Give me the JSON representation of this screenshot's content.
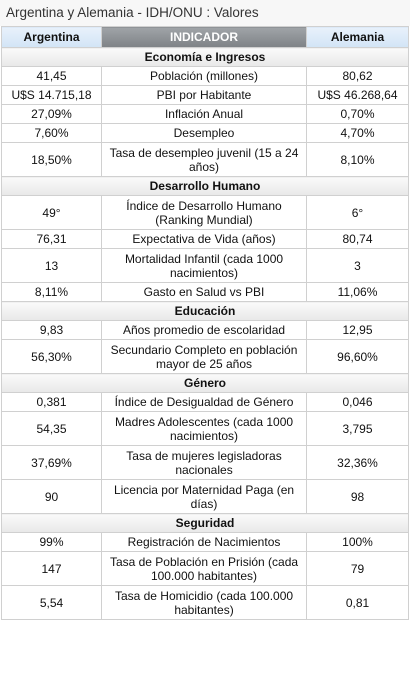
{
  "title": "Argentina y Alemania - IDH/ONU : Valores",
  "headers": {
    "left": "Argentina",
    "middle": "INDICADOR",
    "right": "Alemania"
  },
  "rows": [
    {
      "type": "section",
      "label": "Economía e Ingresos"
    },
    {
      "a": "41,45",
      "label": "Población (millones)",
      "b": "80,62"
    },
    {
      "a": "U$S 14.715,18",
      "label": "PBI por Habitante",
      "b": "U$S 46.268,64"
    },
    {
      "a": "27,09%",
      "label": "Inflación Anual",
      "b": "0,70%"
    },
    {
      "a": "7,60%",
      "label": "Desempleo",
      "b": "4,70%"
    },
    {
      "a": "18,50%",
      "label": "Tasa de desempleo juvenil (15 a 24 años)",
      "b": "8,10%",
      "tall": true
    },
    {
      "type": "section",
      "label": "Desarrollo Humano"
    },
    {
      "a": "49°",
      "label": "Índice de Desarrollo Humano (Ranking Mundial)",
      "b": "6°",
      "tall": true
    },
    {
      "a": "76,31",
      "label": "Expectativa de Vida (años)",
      "b": "80,74"
    },
    {
      "a": "13",
      "label": "Mortalidad Infantil (cada 1000 nacimientos)",
      "b": "3",
      "tall": true
    },
    {
      "a": "8,11%",
      "label": "Gasto en Salud vs PBI",
      "b": "11,06%"
    },
    {
      "type": "section",
      "label": "Educación"
    },
    {
      "a": "9,83",
      "label": "Años promedio de escolaridad",
      "b": "12,95"
    },
    {
      "a": "56,30%",
      "label": "Secundario Completo en población mayor de 25 años",
      "b": "96,60%",
      "tall": true
    },
    {
      "type": "section",
      "label": "Género"
    },
    {
      "a": "0,381",
      "label": "Índice de Desigualdad de Género",
      "b": "0,046"
    },
    {
      "a": "54,35",
      "label": "Madres Adolescentes (cada 1000 nacimientos)",
      "b": "3,795",
      "tall": true
    },
    {
      "a": "37,69%",
      "label": "Tasa de mujeres legisladoras nacionales",
      "b": "32,36%",
      "tall": true
    },
    {
      "a": "90",
      "label": "Licencia por Maternidad Paga (en días)",
      "b": "98",
      "tall": true
    },
    {
      "type": "section",
      "label": "Seguridad"
    },
    {
      "a": "99%",
      "label": "Registración de Nacimientos",
      "b": "100%"
    },
    {
      "a": "147",
      "label": "Tasa de Población en Prisión (cada 100.000 habitantes)",
      "b": "79",
      "tall": true
    },
    {
      "a": "5,54",
      "label": "Tasa de Homicidio (cada 100.000 habitantes)",
      "b": "0,81",
      "tall": true
    }
  ]
}
